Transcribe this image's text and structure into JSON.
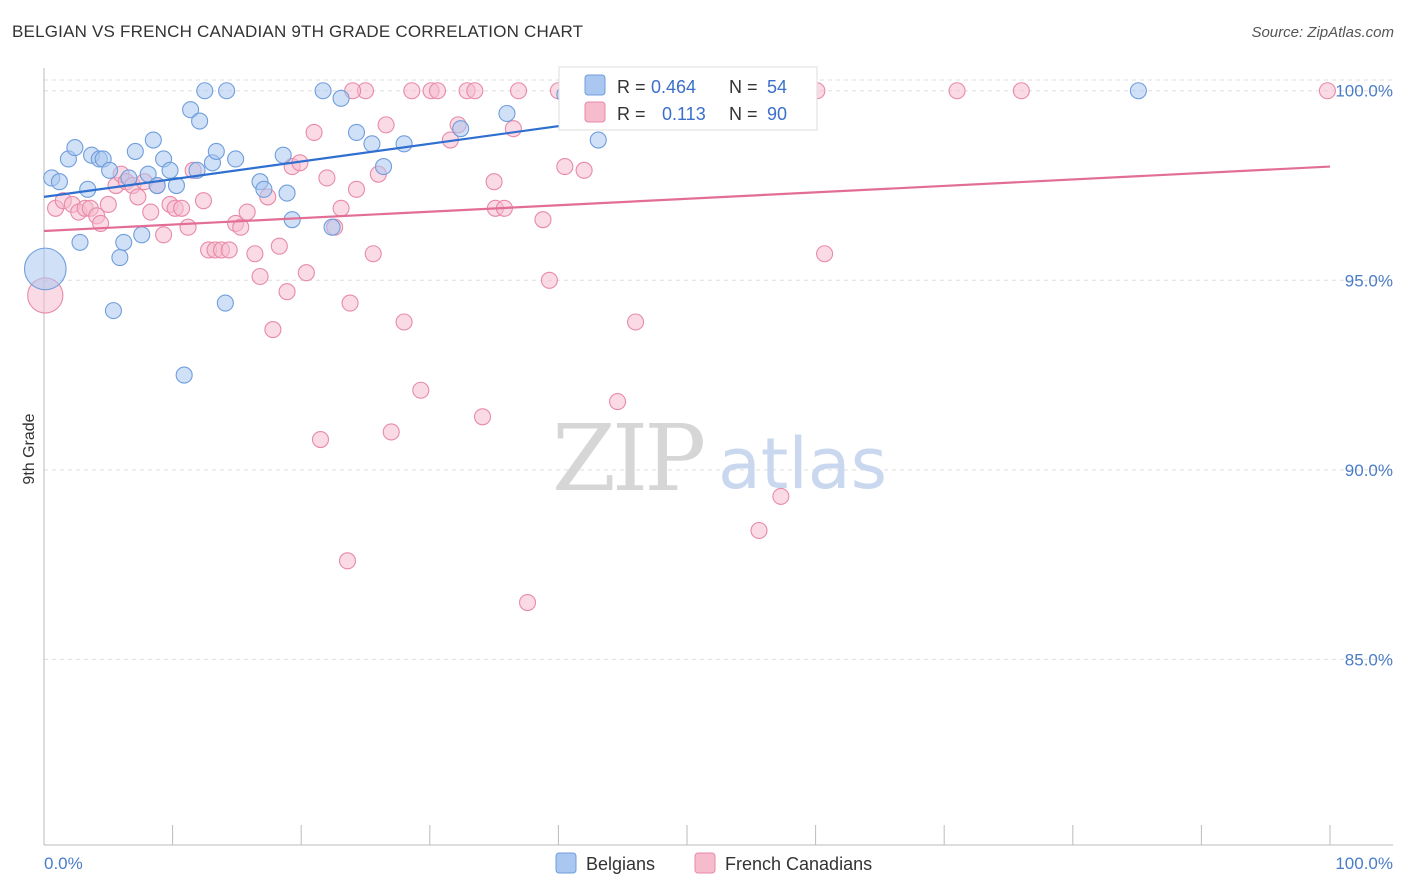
{
  "title": "BELGIAN VS FRENCH CANADIAN 9TH GRADE CORRELATION CHART",
  "source": "Source: ZipAtlas.com",
  "watermark": {
    "zip": "ZIP",
    "atlas": "atlas"
  },
  "colors": {
    "belgian_fill": "#a9c7f0",
    "belgian_stroke": "#6f9edc",
    "belgian_line": "#2f6fd0",
    "french_fill": "#f6bccd",
    "french_stroke": "#e88aa8",
    "french_line": "#e26d95",
    "grid": "#dddddd",
    "tick_text": "#4a7cc7"
  },
  "legend_box": {
    "r_label": "R =",
    "n_label": "N =",
    "rows": [
      {
        "name": "Belgians",
        "r": "0.464",
        "n": "54"
      },
      {
        "name": "French Canadians",
        "r": "0.113",
        "n": "90"
      }
    ]
  },
  "chart_data": {
    "type": "scatter",
    "title": "BELGIAN VS FRENCH CANADIAN 9TH GRADE CORRELATION CHART",
    "xlabel": "",
    "ylabel": "9th Grade",
    "xlim": [
      0,
      100
    ],
    "ylim": [
      80.5,
      100.6
    ],
    "x_tick_labels": [
      "0.0%",
      "100.0%"
    ],
    "y_ticks": [
      100,
      95,
      90,
      85
    ],
    "y_tick_labels": [
      "100.0%",
      "95.0%",
      "90.0%",
      "85.0%"
    ],
    "grid": true,
    "legend": "bottom-center",
    "series": [
      {
        "name": "Belgians",
        "r": 0.464,
        "n": 54,
        "trend": {
          "x": [
            0,
            60
          ],
          "y": [
            97.2,
            100.0
          ]
        },
        "points": [
          [
            0.1,
            95.3,
            2.6
          ],
          [
            0.6,
            97.7,
            1
          ],
          [
            1.2,
            97.6,
            1
          ],
          [
            1.9,
            98.2,
            1
          ],
          [
            2.4,
            98.5,
            1
          ],
          [
            2.8,
            96.0,
            1
          ],
          [
            3.4,
            97.4,
            1
          ],
          [
            3.7,
            98.3,
            1
          ],
          [
            4.3,
            98.2,
            1
          ],
          [
            4.6,
            98.2,
            1
          ],
          [
            5.1,
            97.9,
            1
          ],
          [
            5.4,
            94.2,
            1
          ],
          [
            5.9,
            95.6,
            1
          ],
          [
            6.2,
            96.0,
            1
          ],
          [
            6.6,
            97.7,
            1
          ],
          [
            7.1,
            98.4,
            1
          ],
          [
            7.6,
            96.2,
            1
          ],
          [
            8.1,
            97.8,
            1
          ],
          [
            8.5,
            98.7,
            1
          ],
          [
            8.8,
            97.5,
            1
          ],
          [
            9.3,
            98.2,
            1
          ],
          [
            9.8,
            97.9,
            1
          ],
          [
            10.3,
            97.5,
            1
          ],
          [
            10.9,
            92.5,
            1
          ],
          [
            11.4,
            99.5,
            1
          ],
          [
            11.9,
            97.9,
            1
          ],
          [
            12.1,
            99.2,
            1
          ],
          [
            12.5,
            100.0,
            1
          ],
          [
            13.1,
            98.1,
            1
          ],
          [
            13.4,
            98.4,
            1
          ],
          [
            14.1,
            94.4,
            1
          ],
          [
            14.2,
            100.0,
            1
          ],
          [
            14.9,
            98.2,
            1
          ],
          [
            16.8,
            97.6,
            1
          ],
          [
            17.1,
            97.4,
            1
          ],
          [
            18.6,
            98.3,
            1
          ],
          [
            18.9,
            97.3,
            1
          ],
          [
            19.3,
            96.6,
            1
          ],
          [
            21.7,
            100.0,
            1
          ],
          [
            22.4,
            96.4,
            1
          ],
          [
            23.1,
            99.8,
            1
          ],
          [
            24.3,
            98.9,
            1
          ],
          [
            25.5,
            98.6,
            1
          ],
          [
            26.4,
            98.0,
            1
          ],
          [
            28.0,
            98.6,
            1
          ],
          [
            32.4,
            99.0,
            1
          ],
          [
            36.0,
            99.4,
            1
          ],
          [
            43.1,
            98.7,
            1
          ],
          [
            52.2,
            100.0,
            1
          ],
          [
            54.8,
            100.0,
            1
          ],
          [
            85.1,
            100.0,
            1
          ],
          [
            57.0,
            100.0,
            1
          ],
          [
            47.0,
            99.8,
            1
          ],
          [
            40.5,
            99.9,
            1
          ]
        ]
      },
      {
        "name": "French Canadians",
        "r": 0.113,
        "n": 90,
        "trend": {
          "x": [
            0,
            100
          ],
          "y": [
            96.3,
            98.0
          ]
        },
        "points": [
          [
            0.1,
            94.6,
            2.2
          ],
          [
            0.9,
            96.9,
            1
          ],
          [
            1.5,
            97.1,
            1
          ],
          [
            2.2,
            97.0,
            1
          ],
          [
            2.7,
            96.8,
            1
          ],
          [
            3.2,
            96.9,
            1
          ],
          [
            3.6,
            96.9,
            1
          ],
          [
            4.1,
            96.7,
            1
          ],
          [
            4.4,
            96.5,
            1
          ],
          [
            5.0,
            97.0,
            1
          ],
          [
            5.6,
            97.5,
            1
          ],
          [
            6.0,
            97.8,
            1
          ],
          [
            6.4,
            97.6,
            1
          ],
          [
            6.9,
            97.5,
            1
          ],
          [
            7.3,
            97.2,
            1
          ],
          [
            7.8,
            97.6,
            1
          ],
          [
            8.3,
            96.8,
            1
          ],
          [
            8.8,
            97.5,
            1
          ],
          [
            9.3,
            96.2,
            1
          ],
          [
            9.8,
            97.0,
            1
          ],
          [
            10.2,
            96.9,
            1
          ],
          [
            10.7,
            96.9,
            1
          ],
          [
            11.2,
            96.4,
            1
          ],
          [
            11.6,
            97.9,
            1
          ],
          [
            12.4,
            97.1,
            1
          ],
          [
            12.8,
            95.8,
            1
          ],
          [
            13.3,
            95.8,
            1
          ],
          [
            13.8,
            95.8,
            1
          ],
          [
            14.4,
            95.8,
            1
          ],
          [
            14.9,
            96.5,
            1
          ],
          [
            15.3,
            96.4,
            1
          ],
          [
            15.8,
            96.8,
            1
          ],
          [
            16.4,
            95.7,
            1
          ],
          [
            16.8,
            95.1,
            1
          ],
          [
            17.4,
            97.2,
            1
          ],
          [
            17.8,
            93.7,
            1
          ],
          [
            18.3,
            95.9,
            1
          ],
          [
            18.9,
            94.7,
            1
          ],
          [
            19.3,
            98.0,
            1
          ],
          [
            19.9,
            98.1,
            1
          ],
          [
            20.4,
            95.2,
            1
          ],
          [
            21.0,
            98.9,
            1
          ],
          [
            21.5,
            90.8,
            1
          ],
          [
            22.0,
            97.7,
            1
          ],
          [
            22.6,
            96.4,
            1
          ],
          [
            23.1,
            96.9,
            1
          ],
          [
            23.6,
            87.6,
            1
          ],
          [
            23.8,
            94.4,
            1
          ],
          [
            24.3,
            97.4,
            1
          ],
          [
            25.0,
            100.0,
            1
          ],
          [
            25.6,
            95.7,
            1
          ],
          [
            26.0,
            97.8,
            1
          ],
          [
            26.6,
            99.1,
            1
          ],
          [
            27.0,
            91.0,
            1
          ],
          [
            28.0,
            93.9,
            1
          ],
          [
            28.6,
            100.0,
            1
          ],
          [
            29.3,
            92.1,
            1
          ],
          [
            30.1,
            100.0,
            1
          ],
          [
            30.6,
            100.0,
            1
          ],
          [
            31.6,
            98.7,
            1
          ],
          [
            32.2,
            99.1,
            1
          ],
          [
            32.9,
            100.0,
            1
          ],
          [
            34.1,
            91.4,
            1
          ],
          [
            35.0,
            97.6,
            1
          ],
          [
            35.1,
            96.9,
            1
          ],
          [
            35.8,
            96.9,
            1
          ],
          [
            36.5,
            99.0,
            1
          ],
          [
            36.9,
            100.0,
            1
          ],
          [
            37.6,
            86.5,
            1
          ],
          [
            38.8,
            96.6,
            1
          ],
          [
            39.3,
            95.0,
            1
          ],
          [
            40.0,
            100.0,
            1
          ],
          [
            40.5,
            98.0,
            1
          ],
          [
            41.3,
            100.0,
            1
          ],
          [
            42.0,
            97.9,
            1
          ],
          [
            43.2,
            100.0,
            1
          ],
          [
            44.6,
            91.8,
            1
          ],
          [
            46.0,
            93.9,
            1
          ],
          [
            47.0,
            100.0,
            1
          ],
          [
            50.0,
            100.0,
            1
          ],
          [
            55.1,
            100.0,
            1
          ],
          [
            55.6,
            88.4,
            1
          ],
          [
            57.3,
            89.3,
            1
          ],
          [
            60.1,
            100.0,
            1
          ],
          [
            60.7,
            95.7,
            1
          ],
          [
            71.0,
            100.0,
            1
          ],
          [
            76.0,
            100.0,
            1
          ],
          [
            99.8,
            100.0,
            1
          ],
          [
            24.0,
            100.0,
            1
          ],
          [
            33.5,
            100.0,
            1
          ]
        ]
      }
    ]
  },
  "bottom_legend": [
    {
      "label": "Belgians"
    },
    {
      "label": "French Canadians"
    }
  ]
}
